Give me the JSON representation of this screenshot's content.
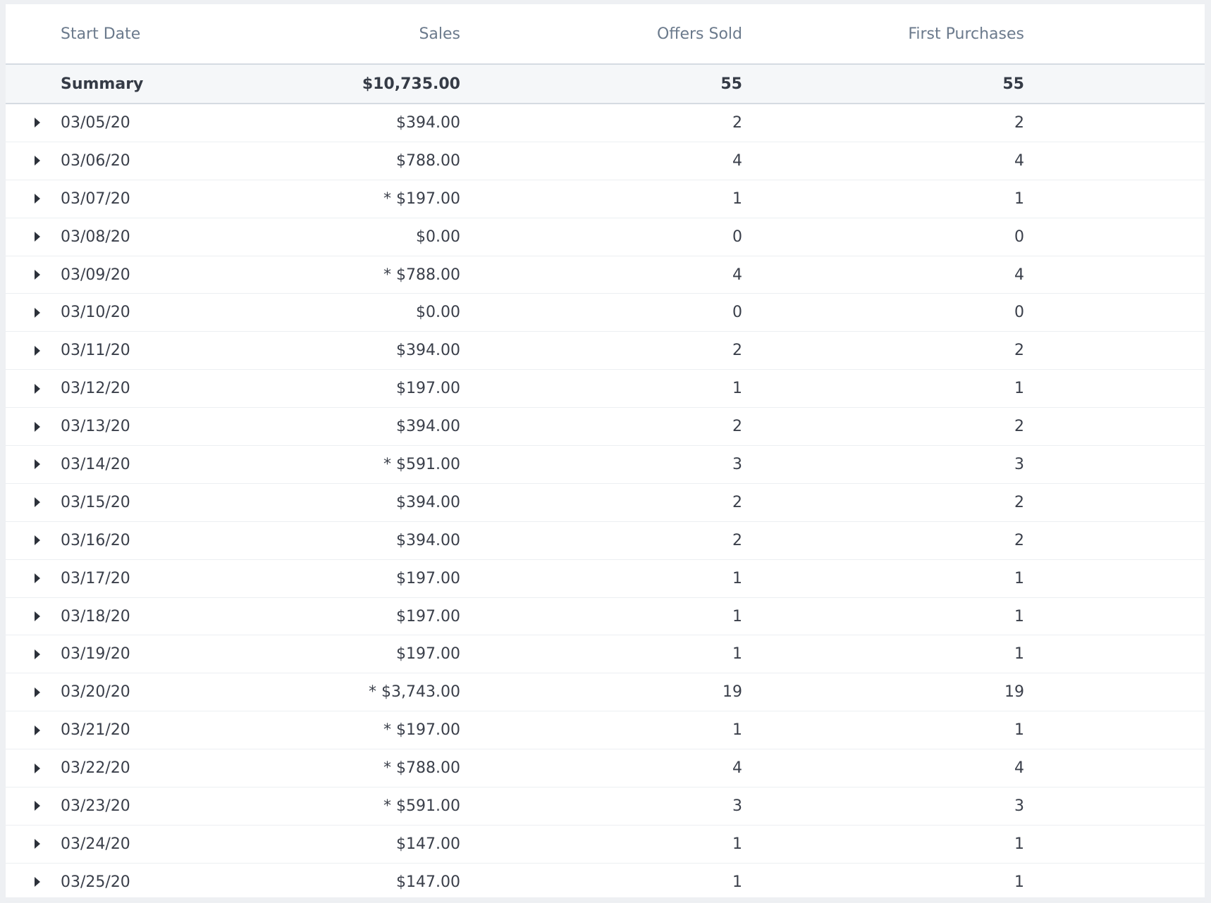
{
  "table": {
    "columns": {
      "start_date": "Start Date",
      "sales": "Sales",
      "offers_sold": "Offers Sold",
      "first_purchases": "First Purchases"
    },
    "summary": {
      "label": "Summary",
      "sales": "$10,735.00",
      "offers_sold": "55",
      "first_purchases": "55"
    },
    "rows": [
      {
        "date": "03/05/20",
        "sales": "$394.00",
        "offers_sold": "2",
        "first_purchases": "2"
      },
      {
        "date": "03/06/20",
        "sales": "$788.00",
        "offers_sold": "4",
        "first_purchases": "4"
      },
      {
        "date": "03/07/20",
        "sales": "* $197.00",
        "offers_sold": "1",
        "first_purchases": "1"
      },
      {
        "date": "03/08/20",
        "sales": "$0.00",
        "offers_sold": "0",
        "first_purchases": "0"
      },
      {
        "date": "03/09/20",
        "sales": "* $788.00",
        "offers_sold": "4",
        "first_purchases": "4"
      },
      {
        "date": "03/10/20",
        "sales": "$0.00",
        "offers_sold": "0",
        "first_purchases": "0"
      },
      {
        "date": "03/11/20",
        "sales": "$394.00",
        "offers_sold": "2",
        "first_purchases": "2"
      },
      {
        "date": "03/12/20",
        "sales": "$197.00",
        "offers_sold": "1",
        "first_purchases": "1"
      },
      {
        "date": "03/13/20",
        "sales": "$394.00",
        "offers_sold": "2",
        "first_purchases": "2"
      },
      {
        "date": "03/14/20",
        "sales": "* $591.00",
        "offers_sold": "3",
        "first_purchases": "3"
      },
      {
        "date": "03/15/20",
        "sales": "$394.00",
        "offers_sold": "2",
        "first_purchases": "2"
      },
      {
        "date": "03/16/20",
        "sales": "$394.00",
        "offers_sold": "2",
        "first_purchases": "2"
      },
      {
        "date": "03/17/20",
        "sales": "$197.00",
        "offers_sold": "1",
        "first_purchases": "1"
      },
      {
        "date": "03/18/20",
        "sales": "$197.00",
        "offers_sold": "1",
        "first_purchases": "1"
      },
      {
        "date": "03/19/20",
        "sales": "$197.00",
        "offers_sold": "1",
        "first_purchases": "1"
      },
      {
        "date": "03/20/20",
        "sales": "* $3,743.00",
        "offers_sold": "19",
        "first_purchases": "19"
      },
      {
        "date": "03/21/20",
        "sales": "* $197.00",
        "offers_sold": "1",
        "first_purchases": "1"
      },
      {
        "date": "03/22/20",
        "sales": "* $788.00",
        "offers_sold": "4",
        "first_purchases": "4"
      },
      {
        "date": "03/23/20",
        "sales": "* $591.00",
        "offers_sold": "3",
        "first_purchases": "3"
      },
      {
        "date": "03/24/20",
        "sales": "$147.00",
        "offers_sold": "1",
        "first_purchases": "1"
      },
      {
        "date": "03/25/20",
        "sales": "$147.00",
        "offers_sold": "1",
        "first_purchases": "1"
      }
    ],
    "row_toggle_icon": "caret-right-icon"
  }
}
